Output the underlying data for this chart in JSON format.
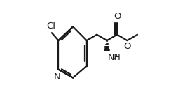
{
  "bg_color": "#ffffff",
  "line_color": "#1a1a1a",
  "line_width": 1.6,
  "font_size_atoms": 9.5,
  "font_size_sub": 7.0,
  "xlim": [
    0.0,
    1.08
  ],
  "ylim": [
    0.05,
    0.95
  ]
}
